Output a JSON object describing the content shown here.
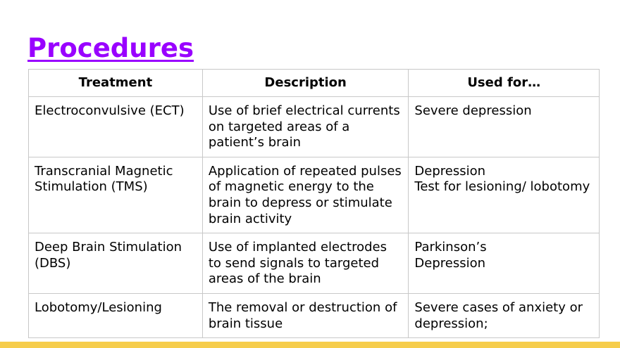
{
  "title": "Procedures",
  "table": {
    "headers": [
      "Treatment",
      "Description",
      "Used for…"
    ],
    "rows": [
      {
        "treatment": "Electroconvulsive (ECT)",
        "description": "Use of brief electrical currents on targeted areas of a patient’s brain",
        "used_for": [
          "Severe depression"
        ]
      },
      {
        "treatment": "Transcranial Magnetic Stimulation (TMS)",
        "description": "Application of repeated pulses of magnetic energy to the brain to depress or stimulate brain activity",
        "used_for": [
          "Depression",
          "Test for lesioning/ lobotomy"
        ]
      },
      {
        "treatment": "Deep Brain Stimulation (DBS)",
        "description": "Use of implanted electrodes to send signals to targeted areas of the brain",
        "used_for": [
          "Parkinson’s",
          "Depression"
        ]
      },
      {
        "treatment": "Lobotomy/Lesioning",
        "description": "The removal or destruction of brain tissue",
        "used_for": [
          "Severe cases of anxiety or depression;"
        ]
      }
    ]
  },
  "colors": {
    "title": "#9900ff",
    "footer_bar": "#f6cd4c"
  }
}
